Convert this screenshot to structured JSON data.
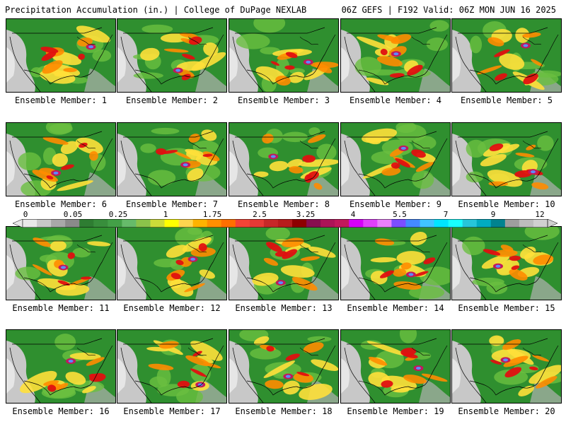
{
  "header": {
    "title": "Precipitation Accumulation (in.) | College of DuPage NEXLAB",
    "run_info": "06Z GEFS | F192 Valid: 06Z MON JUN 16 2025"
  },
  "panels": [
    {
      "label": "Ensemble Member: 1"
    },
    {
      "label": "Ensemble Member: 2"
    },
    {
      "label": "Ensemble Member: 3"
    },
    {
      "label": "Ensemble Member: 4"
    },
    {
      "label": "Ensemble Member: 5"
    },
    {
      "label": "Ensemble Member: 6"
    },
    {
      "label": "Ensemble Member: 7"
    },
    {
      "label": "Ensemble Member: 8"
    },
    {
      "label": "Ensemble Member: 9"
    },
    {
      "label": "Ensemble Member: 10"
    },
    {
      "label": "Ensemble Member: 11"
    },
    {
      "label": "Ensemble Member: 12"
    },
    {
      "label": "Ensemble Member: 13"
    },
    {
      "label": "Ensemble Member: 14"
    },
    {
      "label": "Ensemble Member: 15"
    },
    {
      "label": "Ensemble Member: 16"
    },
    {
      "label": "Ensemble Member: 17"
    },
    {
      "label": "Ensemble Member: 18"
    },
    {
      "label": "Ensemble Member: 19"
    },
    {
      "label": "Ensemble Member: 20"
    }
  ],
  "colorbar": {
    "tick_labels": [
      "0",
      "0.05",
      "0.25",
      "1",
      "1.75",
      "2.5",
      "3.25",
      "4",
      "5.5",
      "7",
      "9",
      "12"
    ],
    "colors": [
      "#e8e8e8",
      "#c8c8c8",
      "#a8a8a8",
      "#8a8a8a",
      "#2e7d32",
      "#388e3c",
      "#43a047",
      "#66bb6a",
      "#8bc34a",
      "#cddc39",
      "#ffff00",
      "#ffd54f",
      "#ffb300",
      "#ff8f00",
      "#ff6f00",
      "#f44336",
      "#e53935",
      "#c62828",
      "#b71c1c",
      "#8e0000",
      "#880e4f",
      "#ad1457",
      "#c2185b",
      "#d500f9",
      "#e040fb",
      "#ea80fc",
      "#7c4dff",
      "#448aff",
      "#40c4ff",
      "#00e5ff",
      "#18ffff",
      "#26c6da",
      "#00acc1",
      "#00838f",
      "#9e9e9e",
      "#bdbdbd",
      "#d0d0d0"
    ]
  }
}
